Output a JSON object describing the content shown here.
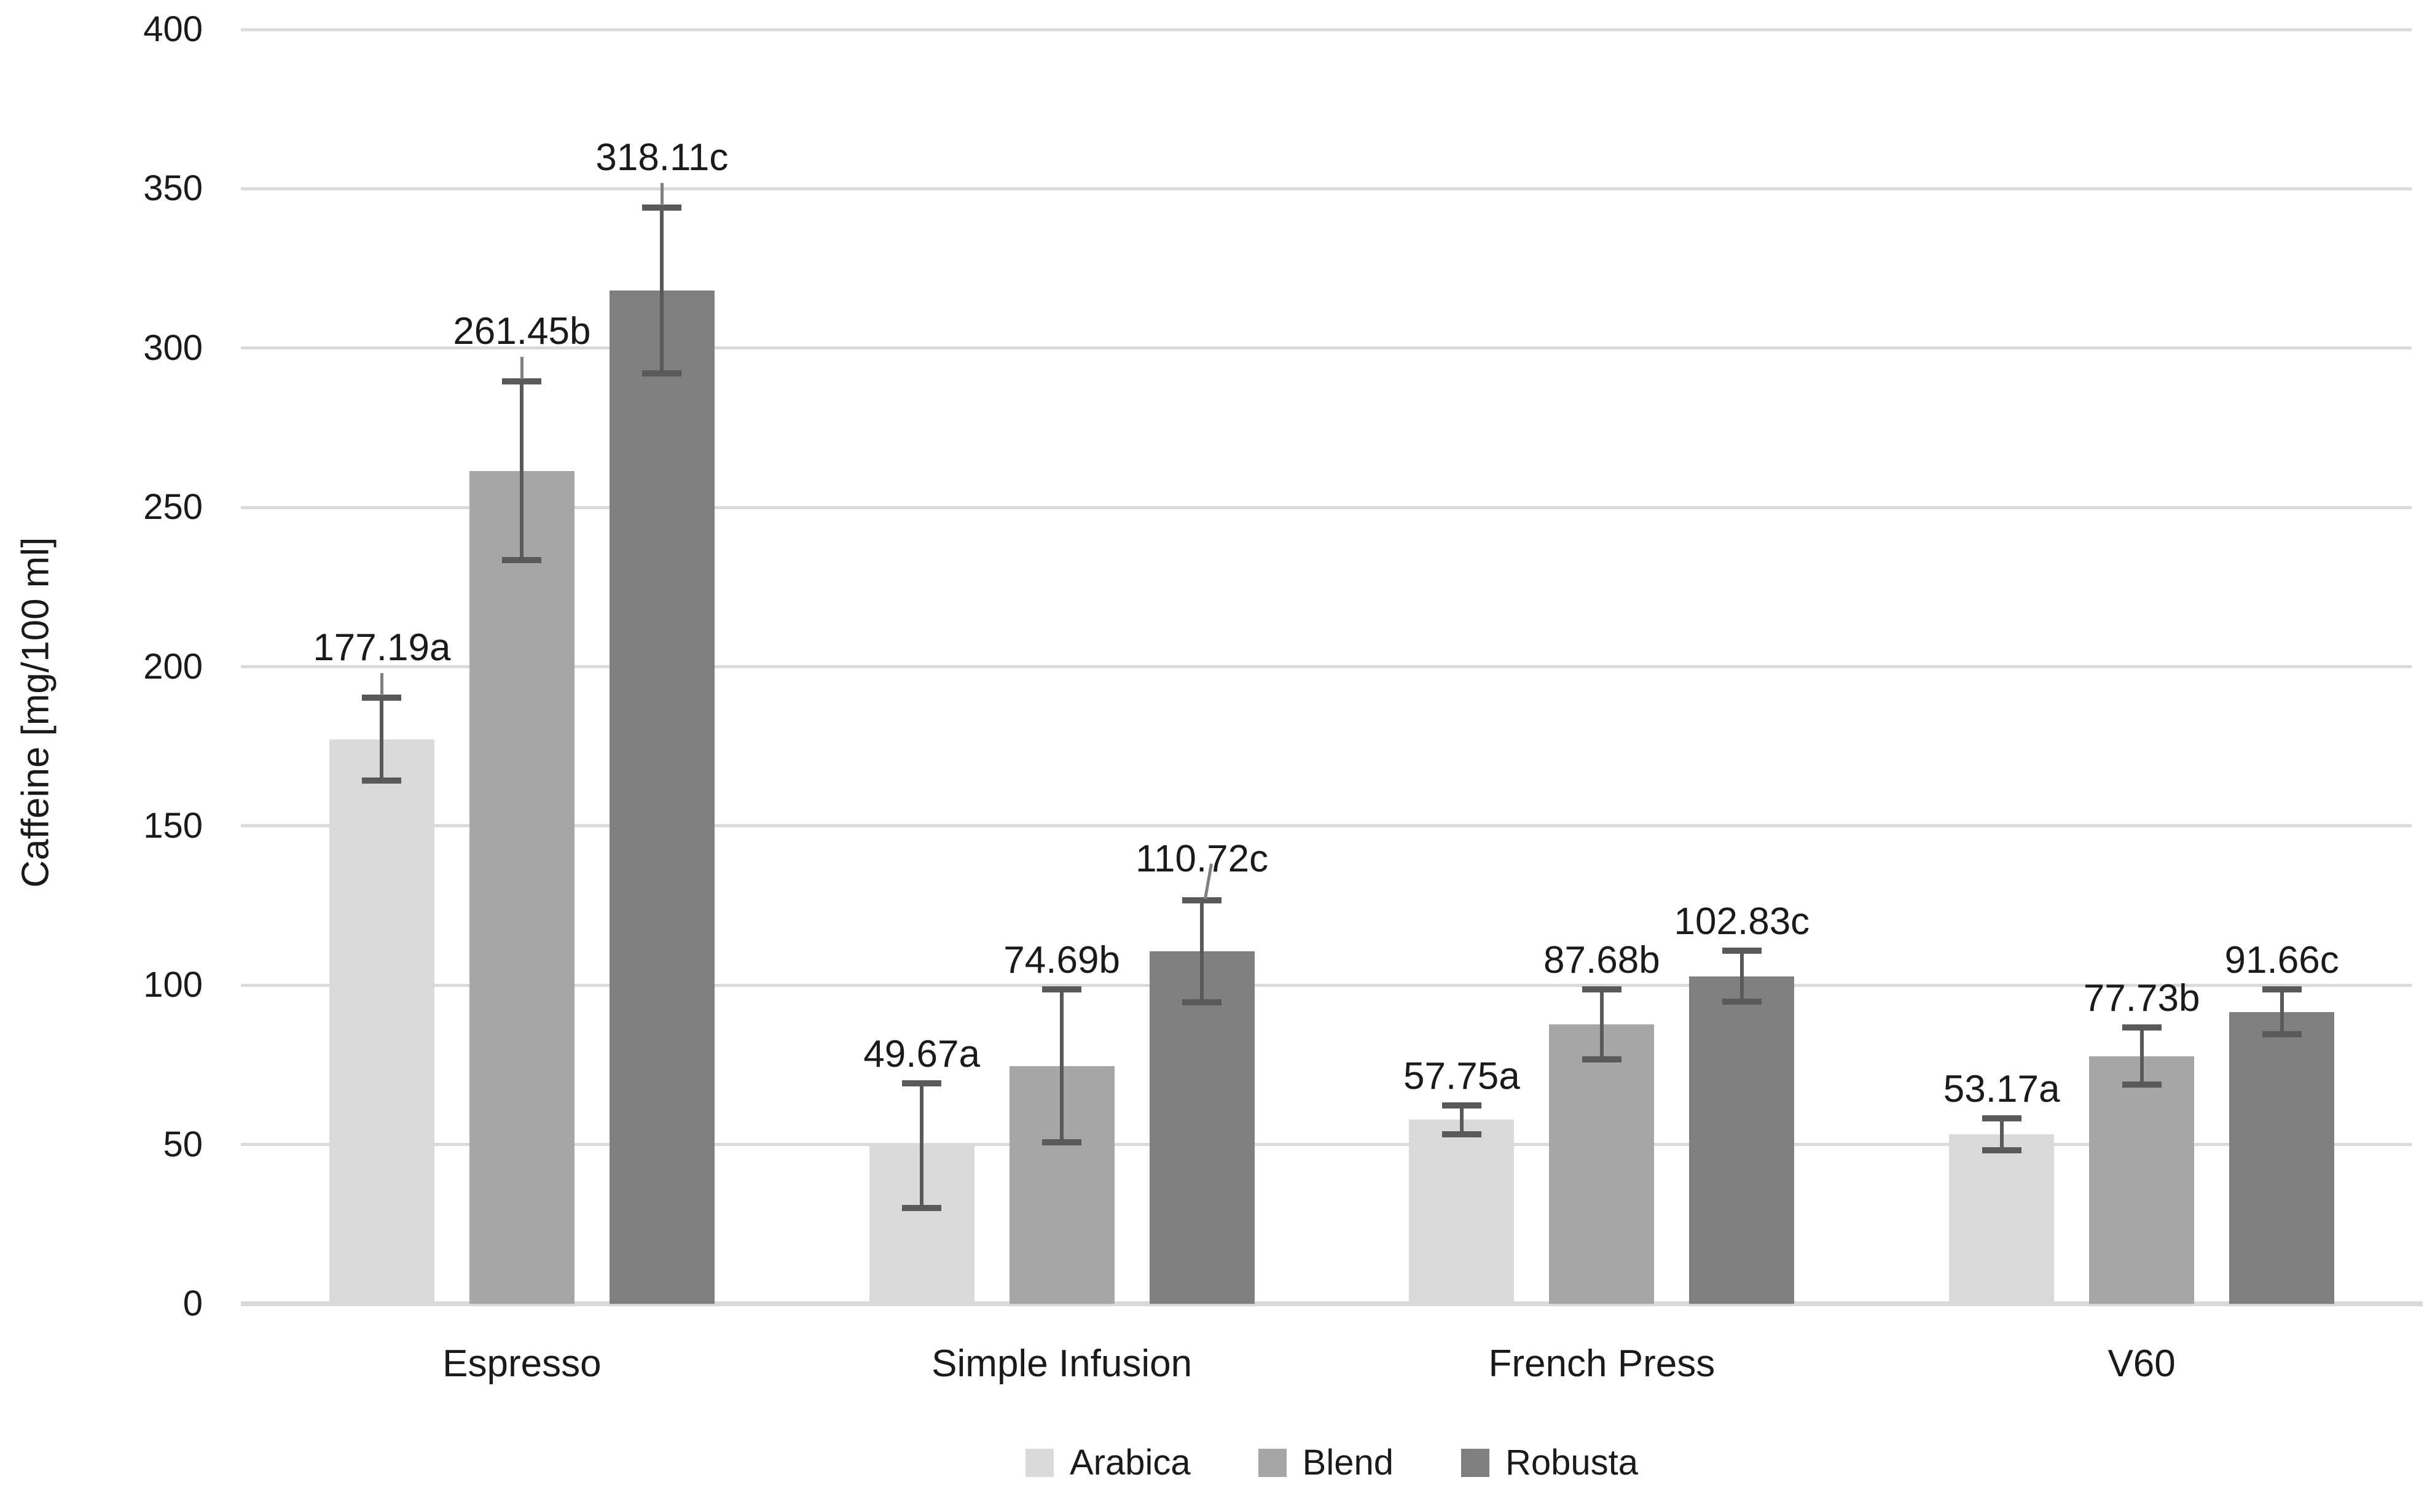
{
  "chart_data": {
    "type": "bar",
    "title": "",
    "xlabel": "",
    "ylabel": "Caffeine [mg/100 ml]",
    "ylim": [
      0,
      400
    ],
    "yticks": [
      0,
      50,
      100,
      150,
      200,
      250,
      300,
      350,
      400
    ],
    "grid": true,
    "categories": [
      "Espresso",
      "Simple Infusion",
      "French Press",
      "V60"
    ],
    "series": [
      {
        "name": "Arabica",
        "color": "#d9d9d9",
        "values": [
          177.19,
          49.67,
          57.75,
          53.17
        ],
        "errors": [
          13,
          19.5,
          4.5,
          5
        ],
        "data_labels": [
          "177.19a",
          "49.67a",
          "57.75a",
          "53.17a"
        ],
        "label_leaders": [
          "vertical",
          null,
          null,
          null
        ]
      },
      {
        "name": "Blend",
        "color": "#a6a6a6",
        "values": [
          261.45,
          74.69,
          87.68,
          77.73
        ],
        "errors": [
          28,
          24,
          11,
          9
        ],
        "data_labels": [
          "261.45b",
          "74.69b",
          "87.68b",
          "77.73b"
        ],
        "label_leaders": [
          "vertical",
          null,
          null,
          null
        ]
      },
      {
        "name": "Robusta",
        "color": "#7f7f7f",
        "values": [
          318.11,
          110.72,
          102.83,
          91.66
        ],
        "errors": [
          26,
          16,
          8,
          7
        ],
        "data_labels": [
          "318.11c",
          "110.72c",
          "102.83c",
          "91.66c"
        ],
        "label_leaders": [
          "vertical",
          "diagonal",
          null,
          null
        ]
      }
    ],
    "legend": {
      "position": "bottom",
      "items": [
        "Arabica",
        "Blend",
        "Robusta"
      ]
    },
    "colors": {
      "gridline": "#d9d9d9",
      "axis_line": "#d9d9d9",
      "error_bar": "#595959",
      "leader_line": "#808080",
      "text": "#1a1a1a",
      "background": "#ffffff"
    }
  }
}
